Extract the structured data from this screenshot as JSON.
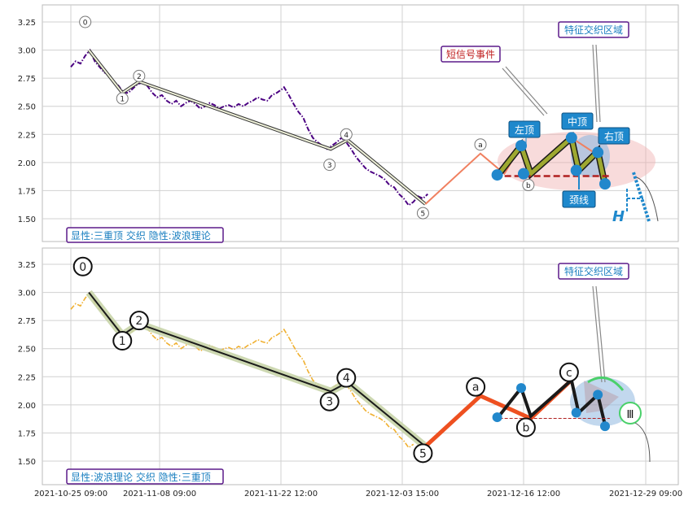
{
  "chart_data": [
    {
      "type": "line",
      "panel": "top",
      "yticks": [
        "3.25",
        "3.00",
        "2.75",
        "2.50",
        "2.25",
        "2.00",
        "1.75",
        "1.50"
      ],
      "ylim": [
        1.35,
        3.4
      ],
      "grid": true,
      "caption": "显性:三重顶 交织 隐性:波浪理论",
      "price_series": {
        "color": "#4b0082",
        "style": "dash-dot",
        "points": [
          [
            0,
            2.85
          ],
          [
            0.4,
            2.9
          ],
          [
            0.8,
            2.88
          ],
          [
            1.2,
            2.95
          ],
          [
            1.6,
            3.0
          ],
          [
            2,
            2.9
          ],
          [
            2.4,
            2.85
          ],
          [
            2.8,
            2.8
          ],
          [
            3.2,
            2.78
          ],
          [
            3.6,
            2.72
          ],
          [
            4,
            2.68
          ],
          [
            4.4,
            2.62
          ],
          [
            4.8,
            2.62
          ],
          [
            5.2,
            2.66
          ],
          [
            5.6,
            2.7
          ],
          [
            6,
            2.71
          ],
          [
            6.4,
            2.68
          ],
          [
            6.8,
            2.62
          ],
          [
            7.2,
            2.58
          ],
          [
            7.6,
            2.6
          ],
          [
            8,
            2.55
          ],
          [
            8.4,
            2.52
          ],
          [
            8.8,
            2.55
          ],
          [
            9.2,
            2.5
          ],
          [
            9.6,
            2.53
          ],
          [
            10,
            2.55
          ],
          [
            10.4,
            2.52
          ],
          [
            10.8,
            2.48
          ],
          [
            11.2,
            2.5
          ],
          [
            11.6,
            2.53
          ],
          [
            12,
            2.51
          ],
          [
            12.4,
            2.48
          ],
          [
            12.8,
            2.5
          ],
          [
            13.2,
            2.51
          ],
          [
            13.6,
            2.49
          ],
          [
            14,
            2.52
          ],
          [
            14.4,
            2.5
          ],
          [
            14.8,
            2.53
          ],
          [
            15.2,
            2.55
          ],
          [
            15.6,
            2.58
          ],
          [
            16,
            2.56
          ],
          [
            16.4,
            2.55
          ],
          [
            16.8,
            2.6
          ],
          [
            17.2,
            2.62
          ],
          [
            17.6,
            2.65
          ],
          [
            17.8,
            2.67
          ],
          [
            18.2,
            2.6
          ],
          [
            18.6,
            2.52
          ],
          [
            19,
            2.45
          ],
          [
            19.4,
            2.4
          ],
          [
            19.8,
            2.3
          ],
          [
            20.2,
            2.22
          ],
          [
            20.6,
            2.18
          ],
          [
            21,
            2.15
          ],
          [
            21.4,
            2.12
          ],
          [
            21.8,
            2.15
          ],
          [
            22.2,
            2.18
          ],
          [
            22.6,
            2.22
          ],
          [
            23,
            2.18
          ],
          [
            23.4,
            2.12
          ],
          [
            23.8,
            2.05
          ],
          [
            24.2,
            2.0
          ],
          [
            24.6,
            1.95
          ],
          [
            25,
            1.92
          ],
          [
            25.4,
            1.9
          ],
          [
            25.8,
            1.88
          ],
          [
            26.2,
            1.85
          ],
          [
            26.6,
            1.8
          ],
          [
            27,
            1.78
          ],
          [
            27.4,
            1.72
          ],
          [
            27.8,
            1.68
          ],
          [
            28.2,
            1.62
          ],
          [
            28.6,
            1.65
          ],
          [
            29,
            1.7
          ],
          [
            29.4,
            1.68
          ],
          [
            29.8,
            1.72
          ]
        ]
      },
      "series": [
        {
          "color": "#eef0d8",
          "points": [
            [
              1.5,
              3.0
            ],
            [
              4.3,
              2.62
            ],
            [
              5.7,
              2.72
            ],
            [
              21.7,
              2.12
            ],
            [
              23.1,
              2.2
            ],
            [
              29.6,
              1.63
            ]
          ]
        },
        {
          "color": "#f08060",
          "points": [
            [
              29.6,
              1.63
            ],
            [
              34.2,
              2.08
            ],
            [
              36.2,
              1.9
            ],
            [
              37.6,
              2.15
            ],
            [
              38.4,
              1.88
            ],
            [
              41.8,
              2.22
            ],
            [
              43.8,
              2.08
            ],
            [
              44.6,
              1.8
            ]
          ]
        },
        {
          "color": "#9ea830",
          "points": [
            [
              35.6,
              1.88
            ],
            [
              37.6,
              2.15
            ],
            [
              38.4,
              1.9
            ],
            [
              41.8,
              2.22
            ],
            [
              42.4,
              1.93
            ],
            [
              44.0,
              2.1
            ],
            [
              44.6,
              1.8
            ]
          ]
        }
      ],
      "wave_labels": [
        {
          "label": "0",
          "x": 1.2,
          "y": 3.25
        },
        {
          "label": "1",
          "x": 4.3,
          "y": 2.57
        },
        {
          "label": "2",
          "x": 5.7,
          "y": 2.77
        },
        {
          "label": "3",
          "x": 21.6,
          "y": 1.98
        },
        {
          "label": "4",
          "x": 23.0,
          "y": 2.25
        },
        {
          "label": "5",
          "x": 29.4,
          "y": 1.55
        },
        {
          "label": "a",
          "x": 34.2,
          "y": 2.16
        },
        {
          "label": "b",
          "x": 38.2,
          "y": 1.8
        }
      ],
      "key_points": [
        [
          35.6,
          1.89
        ],
        [
          37.6,
          2.15
        ],
        [
          37.8,
          1.9
        ],
        [
          41.8,
          2.22
        ],
        [
          42.2,
          1.93
        ],
        [
          44.0,
          2.09
        ],
        [
          44.6,
          1.81
        ]
      ],
      "neckline": 1.88,
      "annotations": [
        "左顶",
        "中顶",
        "右顶",
        "颈线",
        "短信号事件",
        "特征交织区域"
      ],
      "symbol": "H"
    },
    {
      "type": "line",
      "panel": "bottom",
      "yticks": [
        "3.25",
        "3.00",
        "2.75",
        "2.50",
        "2.25",
        "2.00",
        "1.75",
        "1.50"
      ],
      "ylim": [
        1.35,
        3.4
      ],
      "grid": true,
      "caption": "显性:波浪理论 交织 隐性:三重顶",
      "price_series": {
        "color": "#f0b030",
        "style": "dash-dot",
        "points": [
          [
            0,
            2.85
          ],
          [
            0.4,
            2.9
          ],
          [
            0.8,
            2.88
          ],
          [
            1.2,
            2.95
          ],
          [
            1.6,
            3.0
          ],
          [
            2,
            2.9
          ],
          [
            2.4,
            2.85
          ],
          [
            2.8,
            2.8
          ],
          [
            3.2,
            2.78
          ],
          [
            3.6,
            2.72
          ],
          [
            4,
            2.68
          ],
          [
            4.4,
            2.62
          ],
          [
            4.8,
            2.62
          ],
          [
            5.2,
            2.66
          ],
          [
            5.6,
            2.7
          ],
          [
            6,
            2.71
          ],
          [
            6.4,
            2.68
          ],
          [
            6.8,
            2.62
          ],
          [
            7.2,
            2.58
          ],
          [
            7.6,
            2.6
          ],
          [
            8,
            2.55
          ],
          [
            8.4,
            2.52
          ],
          [
            8.8,
            2.55
          ],
          [
            9.2,
            2.5
          ],
          [
            9.6,
            2.53
          ],
          [
            10,
            2.55
          ],
          [
            10.4,
            2.52
          ],
          [
            10.8,
            2.48
          ],
          [
            11.2,
            2.5
          ],
          [
            11.6,
            2.53
          ],
          [
            12,
            2.51
          ],
          [
            12.4,
            2.48
          ],
          [
            12.8,
            2.5
          ],
          [
            13.2,
            2.51
          ],
          [
            13.6,
            2.49
          ],
          [
            14,
            2.52
          ],
          [
            14.4,
            2.5
          ],
          [
            14.8,
            2.53
          ],
          [
            15.2,
            2.55
          ],
          [
            15.6,
            2.58
          ],
          [
            16,
            2.56
          ],
          [
            16.4,
            2.55
          ],
          [
            16.8,
            2.6
          ],
          [
            17.2,
            2.62
          ],
          [
            17.6,
            2.65
          ],
          [
            17.8,
            2.67
          ],
          [
            18.2,
            2.6
          ],
          [
            18.6,
            2.52
          ],
          [
            19,
            2.45
          ],
          [
            19.4,
            2.4
          ],
          [
            19.8,
            2.3
          ],
          [
            20.2,
            2.22
          ],
          [
            20.6,
            2.18
          ],
          [
            21,
            2.15
          ],
          [
            21.4,
            2.12
          ],
          [
            21.8,
            2.15
          ],
          [
            22.2,
            2.18
          ],
          [
            22.6,
            2.22
          ],
          [
            23,
            2.18
          ],
          [
            23.4,
            2.12
          ],
          [
            23.8,
            2.05
          ],
          [
            24.2,
            2.0
          ],
          [
            24.6,
            1.95
          ],
          [
            25,
            1.92
          ],
          [
            25.4,
            1.9
          ],
          [
            25.8,
            1.88
          ],
          [
            26.2,
            1.85
          ],
          [
            26.6,
            1.8
          ],
          [
            27,
            1.78
          ],
          [
            27.4,
            1.72
          ],
          [
            27.8,
            1.68
          ],
          [
            28.2,
            1.62
          ],
          [
            28.6,
            1.65
          ]
        ]
      },
      "series": [
        {
          "color": "#1a1a1a",
          "points": [
            [
              1.5,
              3.0
            ],
            [
              4.3,
              2.62
            ],
            [
              5.7,
              2.72
            ],
            [
              21.7,
              2.12
            ],
            [
              23.1,
              2.2
            ],
            [
              29.6,
              1.63
            ]
          ]
        },
        {
          "color": "#ee5020",
          "points": [
            [
              29.6,
              1.63
            ],
            [
              34.2,
              2.08
            ],
            [
              38.4,
              1.88
            ],
            [
              41.8,
              2.22
            ]
          ]
        },
        {
          "color": "#1a1a1a",
          "points": [
            [
              35.6,
              1.88
            ],
            [
              37.6,
              2.15
            ],
            [
              38.4,
              1.9
            ],
            [
              41.8,
              2.22
            ],
            [
              42.4,
              1.93
            ],
            [
              44.0,
              2.09
            ],
            [
              44.6,
              1.82
            ]
          ]
        }
      ],
      "wave_labels": [
        {
          "label": "0",
          "x": 1.0,
          "y": 3.23
        },
        {
          "label": "1",
          "x": 4.3,
          "y": 2.57
        },
        {
          "label": "2",
          "x": 5.7,
          "y": 2.75
        },
        {
          "label": "3",
          "x": 21.6,
          "y": 2.03
        },
        {
          "label": "4",
          "x": 23.0,
          "y": 2.24
        },
        {
          "label": "5",
          "x": 29.4,
          "y": 1.57
        },
        {
          "label": "a",
          "x": 33.8,
          "y": 2.16
        },
        {
          "label": "b",
          "x": 38.0,
          "y": 1.8
        },
        {
          "label": "c",
          "x": 41.6,
          "y": 2.29
        }
      ],
      "key_points": [
        [
          35.6,
          1.89
        ],
        [
          37.6,
          2.15
        ],
        [
          42.2,
          1.93
        ],
        [
          44.0,
          2.09
        ],
        [
          44.6,
          1.81
        ]
      ],
      "neckline": 1.88,
      "annotations": [
        "特征交织区域"
      ],
      "symbol": "Ⅲ"
    }
  ],
  "x_axis": {
    "ticks": [
      "2021-10-25 09:00",
      "2021-11-08 09:00",
      "2021-11-22 12:00",
      "2021-12-03 15:00",
      "2021-12-16 12:00",
      "2021-12-29 09:00"
    ]
  }
}
